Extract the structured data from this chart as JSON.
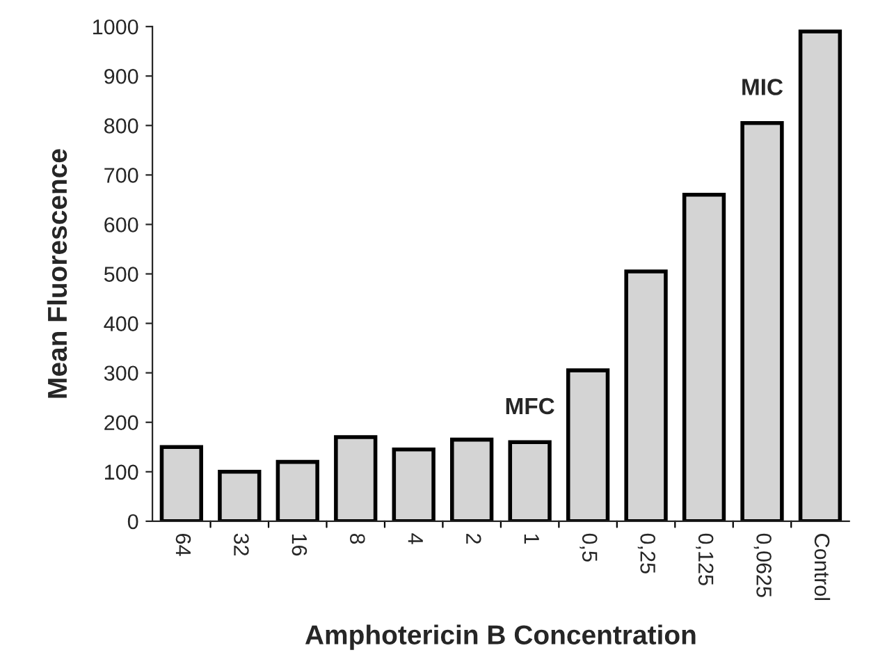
{
  "chart_data": {
    "type": "bar",
    "xlabel": "Amphotericin B Concentration",
    "ylabel": "Mean Fluorescence",
    "categories": [
      "64",
      "32",
      "16",
      "8",
      "4",
      "2",
      "1",
      "0,5",
      "0,25",
      "0,125",
      "0,0625",
      "Control"
    ],
    "values": [
      150,
      100,
      120,
      170,
      145,
      165,
      160,
      305,
      505,
      660,
      805,
      990
    ],
    "color": "#d4d4d4",
    "ylim": [
      0,
      1000
    ],
    "yticks": [
      0,
      100,
      200,
      300,
      400,
      500,
      600,
      700,
      800,
      900,
      1000
    ],
    "grid": false,
    "annotations": [
      {
        "text": "MFC",
        "x": "1",
        "y": 160
      },
      {
        "text": "MIC",
        "x": "0,0625",
        "y": 805
      }
    ]
  }
}
